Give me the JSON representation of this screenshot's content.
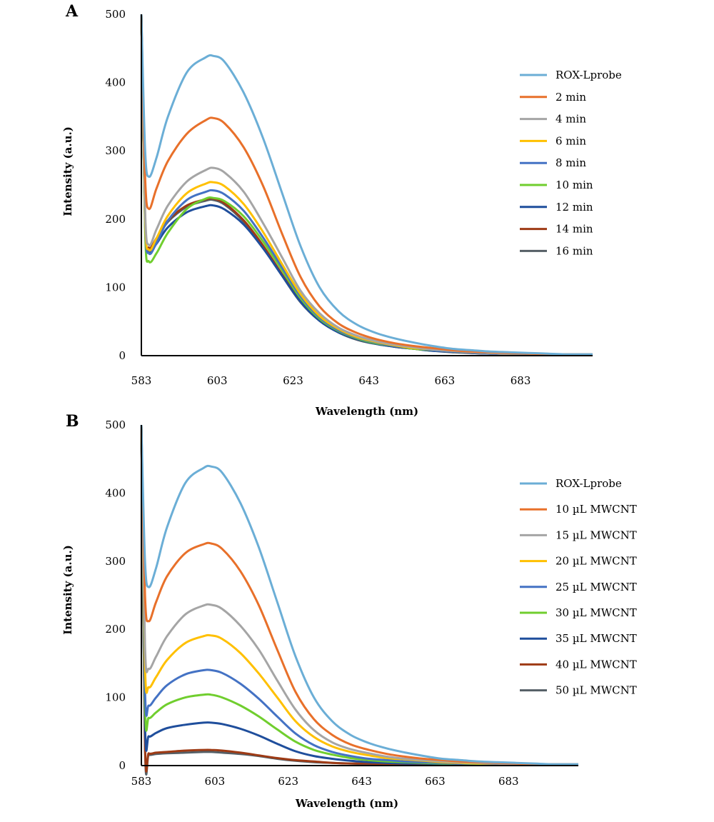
{
  "chart_data": [
    {
      "type": "line",
      "panel_label": "A",
      "xlabel": "Wavelength (nm)",
      "ylabel": "Intensity (a.u.)",
      "x_ticks": [
        "583",
        "603",
        "623",
        "643",
        "663",
        "683"
      ],
      "y_ticks": [
        "0",
        "100",
        "200",
        "300",
        "400",
        "500"
      ],
      "xlim": [
        583,
        702
      ],
      "ylim": [
        0,
        500
      ],
      "legend_position": "right",
      "x": [
        583,
        584,
        585,
        587,
        590,
        595,
        600,
        602,
        605,
        610,
        615,
        620,
        625,
        630,
        635,
        640,
        645,
        650,
        655,
        660,
        665,
        670,
        675,
        680,
        685,
        690,
        695,
        700,
        702
      ],
      "series": [
        {
          "name": "ROX-Lprobe",
          "color": "#6baed6",
          "values": [
            500,
            300,
            262,
            290,
            350,
            415,
            437,
            439,
            430,
            385,
            320,
            240,
            160,
            100,
            65,
            45,
            33,
            25,
            19,
            14,
            10,
            8,
            6,
            5,
            4,
            3,
            2,
            2,
            2
          ]
        },
        {
          "name": "2 min",
          "color": "#e8702a",
          "values": [
            500,
            260,
            215,
            245,
            285,
            325,
            345,
            348,
            340,
            305,
            250,
            180,
            115,
            72,
            47,
            33,
            24,
            18,
            14,
            11,
            8,
            6,
            5,
            4,
            3,
            2,
            2,
            2,
            2
          ]
        },
        {
          "name": "4 min",
          "color": "#a5a5a5",
          "values": [
            500,
            210,
            162,
            185,
            220,
            255,
            272,
            275,
            268,
            240,
            195,
            145,
            95,
            62,
            41,
            29,
            21,
            16,
            12,
            9,
            7,
            5,
            4,
            3,
            3,
            2,
            2,
            2,
            2
          ]
        },
        {
          "name": "6 min",
          "color": "#ffc000",
          "values": [
            500,
            200,
            155,
            172,
            205,
            238,
            252,
            254,
            248,
            222,
            182,
            135,
            90,
            58,
            39,
            27,
            20,
            15,
            11,
            9,
            7,
            5,
            4,
            3,
            3,
            2,
            2,
            2,
            2
          ]
        },
        {
          "name": "8 min",
          "color": "#4472c4",
          "values": [
            500,
            195,
            150,
            165,
            198,
            228,
            240,
            242,
            236,
            212,
            174,
            130,
            87,
            56,
            37,
            26,
            19,
            14,
            11,
            8,
            6,
            5,
            4,
            3,
            2,
            2,
            2,
            2,
            2
          ]
        },
        {
          "name": "10 min",
          "color": "#70ce2e",
          "values": [
            500,
            180,
            138,
            150,
            180,
            215,
            230,
            231,
            226,
            204,
            168,
            126,
            84,
            54,
            36,
            25,
            18,
            14,
            10,
            8,
            6,
            5,
            4,
            3,
            2,
            2,
            2,
            2,
            2
          ]
        },
        {
          "name": "12 min",
          "color": "#1f4e9c",
          "values": [
            500,
            190,
            152,
            164,
            188,
            210,
            219,
            220,
            214,
            192,
            158,
            118,
            79,
            51,
            34,
            24,
            17,
            13,
            10,
            7,
            6,
            4,
            3,
            3,
            2,
            2,
            2,
            2,
            2
          ]
        },
        {
          "name": "14 min",
          "color": "#9e3a14",
          "values": [
            500,
            195,
            158,
            172,
            198,
            220,
            229,
            230,
            223,
            198,
            162,
            120,
            80,
            52,
            35,
            24,
            18,
            13,
            10,
            8,
            6,
            4,
            3,
            3,
            2,
            2,
            2,
            2,
            2
          ]
        },
        {
          "name": "16 min",
          "color": "#555f66",
          "values": [
            500,
            192,
            156,
            170,
            196,
            218,
            227,
            228,
            221,
            196,
            160,
            118,
            78,
            51,
            34,
            23,
            17,
            13,
            10,
            7,
            5,
            4,
            3,
            3,
            2,
            2,
            2,
            2,
            2
          ]
        }
      ]
    },
    {
      "type": "line",
      "panel_label": "B",
      "xlabel": "Wavelength (nm)",
      "ylabel": "Intensity (a.u.)",
      "x_ticks": [
        "583",
        "603",
        "623",
        "643",
        "663",
        "683"
      ],
      "y_ticks": [
        "0",
        "100",
        "200",
        "300",
        "400",
        "500"
      ],
      "xlim": [
        583,
        702
      ],
      "ylim": [
        0,
        500
      ],
      "legend_position": "right",
      "x": [
        583,
        584,
        585,
        587,
        590,
        595,
        600,
        602,
        605,
        610,
        615,
        620,
        625,
        630,
        635,
        640,
        645,
        650,
        655,
        660,
        665,
        670,
        675,
        680,
        685,
        690,
        695,
        700,
        702
      ],
      "series": [
        {
          "name": "ROX-Lprobe",
          "color": "#6baed6",
          "values": [
            500,
            300,
            262,
            290,
            350,
            415,
            437,
            439,
            430,
            385,
            320,
            240,
            160,
            100,
            65,
            45,
            33,
            25,
            19,
            14,
            10,
            8,
            6,
            5,
            4,
            3,
            2,
            2,
            2
          ]
        },
        {
          "name": "10 µL MWCNT",
          "color": "#e8702a",
          "values": [
            500,
            250,
            212,
            240,
            278,
            312,
            325,
            326,
            318,
            285,
            235,
            170,
            108,
            68,
            45,
            31,
            23,
            17,
            13,
            10,
            8,
            6,
            5,
            4,
            3,
            2,
            2,
            2,
            2
          ]
        },
        {
          "name": "15 µL MWCNT",
          "color": "#a5a5a5",
          "values": [
            500,
            175,
            142,
            160,
            190,
            222,
            235,
            236,
            230,
            205,
            170,
            125,
            82,
            52,
            34,
            24,
            18,
            13,
            10,
            8,
            6,
            5,
            4,
            3,
            2,
            2,
            2,
            2,
            2
          ]
        },
        {
          "name": "20 µL MWCNT",
          "color": "#ffc000",
          "values": [
            500,
            145,
            115,
            130,
            155,
            180,
            190,
            191,
            186,
            165,
            135,
            100,
            65,
            42,
            28,
            20,
            15,
            11,
            9,
            7,
            5,
            4,
            3,
            3,
            2,
            2,
            2,
            2,
            2
          ]
        },
        {
          "name": "25 µL MWCNT",
          "color": "#4472c4",
          "values": [
            500,
            110,
            88,
            100,
            118,
            134,
            140,
            140,
            136,
            120,
            98,
            72,
            47,
            30,
            20,
            14,
            10,
            8,
            6,
            5,
            4,
            3,
            3,
            2,
            2,
            2,
            2,
            2,
            2
          ]
        },
        {
          "name": "30 µL MWCNT",
          "color": "#70ce2e",
          "values": [
            500,
            88,
            70,
            78,
            90,
            100,
            104,
            104,
            100,
            88,
            72,
            53,
            35,
            23,
            16,
            11,
            8,
            6,
            5,
            4,
            3,
            3,
            2,
            2,
            2,
            2,
            2,
            2,
            2
          ]
        },
        {
          "name": "35 µL MWCNT",
          "color": "#1f4e9c",
          "values": [
            500,
            60,
            43,
            48,
            55,
            60,
            63,
            63,
            61,
            54,
            44,
            32,
            21,
            14,
            10,
            7,
            5,
            4,
            3,
            3,
            2,
            2,
            2,
            2,
            2,
            2,
            2,
            2,
            2
          ]
        },
        {
          "name": "40 µL MWCNT",
          "color": "#9e3a14",
          "values": [
            500,
            30,
            18,
            19,
            20,
            22,
            23,
            23,
            22,
            19,
            15,
            11,
            8,
            6,
            4,
            3,
            3,
            2,
            2,
            2,
            2,
            2,
            2,
            2,
            2,
            2,
            2,
            2,
            2
          ]
        },
        {
          "name": "50 µL MWCNT",
          "color": "#555f66",
          "values": [
            500,
            25,
            16,
            17,
            18,
            19,
            20,
            20,
            19,
            17,
            14,
            10,
            7,
            5,
            4,
            3,
            2,
            2,
            2,
            2,
            2,
            2,
            2,
            2,
            2,
            2,
            2,
            2,
            2
          ]
        }
      ]
    }
  ]
}
